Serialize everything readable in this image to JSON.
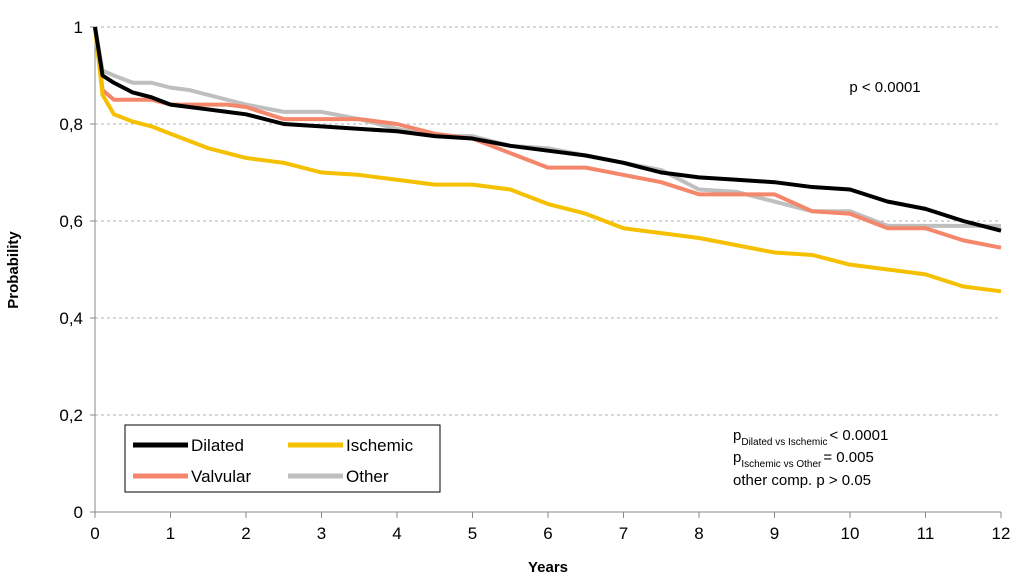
{
  "chart_data": {
    "type": "line",
    "x_label": "Years",
    "y_label": "Probability",
    "x": [
      0,
      0.1,
      0.25,
      0.5,
      0.75,
      1,
      1.25,
      1.5,
      1.75,
      2,
      2.5,
      3,
      3.5,
      4,
      4.5,
      5,
      5.5,
      6,
      6.5,
      7,
      7.5,
      8,
      8.5,
      9,
      9.5,
      10,
      10.5,
      11,
      11.5,
      12
    ],
    "series": [
      {
        "name": "Dilated",
        "color": "#000000",
        "values": [
          1,
          0.9,
          0.885,
          0.865,
          0.855,
          0.84,
          0.835,
          0.83,
          0.825,
          0.82,
          0.8,
          0.795,
          0.79,
          0.785,
          0.775,
          0.77,
          0.755,
          0.745,
          0.735,
          0.72,
          0.7,
          0.69,
          0.685,
          0.68,
          0.67,
          0.665,
          0.64,
          0.625,
          0.6,
          0.58
        ]
      },
      {
        "name": "Ischemic",
        "color": "#f5c000",
        "values": [
          1,
          0.86,
          0.82,
          0.805,
          0.795,
          0.78,
          0.765,
          0.75,
          0.74,
          0.73,
          0.72,
          0.7,
          0.695,
          0.685,
          0.675,
          0.675,
          0.665,
          0.635,
          0.615,
          0.585,
          0.575,
          0.565,
          0.55,
          0.535,
          0.53,
          0.51,
          0.5,
          0.49,
          0.465,
          0.455
        ]
      },
      {
        "name": "Valvular",
        "color": "#f4876b",
        "values": [
          1,
          0.87,
          0.85,
          0.85,
          0.85,
          0.84,
          0.84,
          0.84,
          0.84,
          0.835,
          0.81,
          0.81,
          0.81,
          0.8,
          0.78,
          0.77,
          0.74,
          0.71,
          0.71,
          0.695,
          0.68,
          0.655,
          0.655,
          0.655,
          0.62,
          0.615,
          0.585,
          0.585,
          0.56,
          0.545
        ]
      },
      {
        "name": "Other",
        "color": "#bfbfbf",
        "values": [
          1,
          0.91,
          0.9,
          0.885,
          0.885,
          0.875,
          0.87,
          0.86,
          0.85,
          0.84,
          0.825,
          0.825,
          0.81,
          0.79,
          0.775,
          0.775,
          0.755,
          0.75,
          0.735,
          0.72,
          0.705,
          0.665,
          0.66,
          0.64,
          0.62,
          0.62,
          0.59,
          0.59,
          0.59,
          0.59
        ]
      }
    ],
    "xlim": [
      0,
      12
    ],
    "xticks": [
      0,
      1,
      2,
      3,
      4,
      5,
      6,
      7,
      8,
      9,
      10,
      11,
      12
    ],
    "ylim": [
      0,
      1
    ],
    "yticks": [
      0,
      {
        "value": 0.2,
        "label": "0,2"
      },
      {
        "value": 0.4,
        "label": "0,4"
      },
      {
        "value": 0.6,
        "label": "0,6"
      },
      {
        "value": 0.8,
        "label": "0,8"
      },
      1
    ],
    "grid": true,
    "legend": "lower left",
    "annotation": "p < 0.0001",
    "comparisons": [
      {
        "symbol": "p",
        "subscript": "Dilated vs Ischemic",
        "text": "< 0.0001"
      },
      {
        "symbol": "p",
        "subscript": "Ischemic vs Other",
        "text": "= 0.005"
      }
    ],
    "note": "other comp. p > 0.05"
  }
}
